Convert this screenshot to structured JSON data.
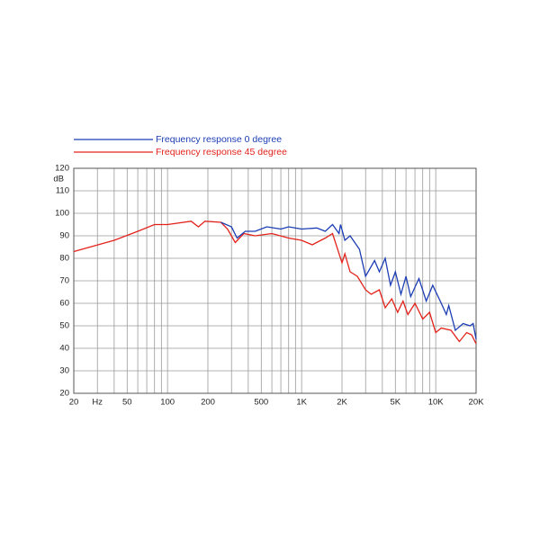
{
  "chart_data": {
    "type": "line",
    "x_scale": "log",
    "y_label": "dB",
    "xlim": [
      20,
      20000
    ],
    "ylim": [
      20,
      120
    ],
    "xticks": [
      20,
      {
        "value": 30,
        "label": "Hz"
      },
      50,
      100,
      200,
      500,
      {
        "value": 1000,
        "label": "1K"
      },
      {
        "value": 2000,
        "label": "2K"
      },
      {
        "value": 5000,
        "label": "5K"
      },
      {
        "value": 10000,
        "label": "10K"
      },
      {
        "value": 20000,
        "label": "20K"
      }
    ],
    "xgrid": [
      40,
      60,
      70,
      80,
      90,
      300,
      400,
      600,
      700,
      800,
      900,
      3000,
      4000,
      6000,
      7000,
      8000,
      9000
    ],
    "yticks": [
      20,
      30,
      40,
      50,
      60,
      70,
      80,
      90,
      100,
      110,
      120
    ],
    "grid": true,
    "series": [
      {
        "name": "Frequency response 0 degree",
        "color": "#1c3db4",
        "x": [
          250,
          300,
          330,
          380,
          450,
          550,
          700,
          800,
          1000,
          1300,
          1500,
          1700,
          1900,
          1950,
          2100,
          2300,
          2700,
          3000,
          3500,
          3800,
          4200,
          4600,
          5000,
          5500,
          6000,
          6500,
          7500,
          8500,
          9500,
          11000,
          12000,
          12500,
          14000,
          16000,
          18000,
          19000,
          20000
        ],
        "values": [
          96,
          94,
          89,
          92,
          92,
          94,
          93,
          94,
          93,
          93.5,
          92,
          95,
          91,
          95,
          88,
          90,
          84,
          72,
          79,
          74,
          80,
          68,
          74,
          64,
          72,
          63,
          71,
          61,
          68,
          60,
          55,
          59,
          48,
          51,
          50,
          51,
          44
        ]
      },
      {
        "name": "Frequency response 45 degree",
        "color": "#e3231b",
        "x": [
          20,
          40,
          60,
          80,
          100,
          150,
          170,
          190,
          250,
          280,
          320,
          370,
          450,
          600,
          800,
          1000,
          1200,
          1500,
          1700,
          2000,
          2100,
          2300,
          2600,
          3000,
          3300,
          3800,
          4200,
          4700,
          5200,
          5700,
          6200,
          7000,
          8000,
          9000,
          10000,
          11000,
          13000,
          15000,
          17000,
          18500,
          20000
        ],
        "values": [
          83,
          88,
          92,
          95,
          95,
          96.5,
          94,
          96.5,
          96,
          93,
          87,
          91,
          90,
          91,
          89,
          88,
          86,
          89,
          91,
          78,
          82,
          74,
          72,
          66,
          64,
          66,
          58,
          62,
          56,
          61,
          55,
          60,
          53,
          56,
          47,
          49,
          48,
          43,
          47,
          46,
          42
        ]
      }
    ]
  }
}
